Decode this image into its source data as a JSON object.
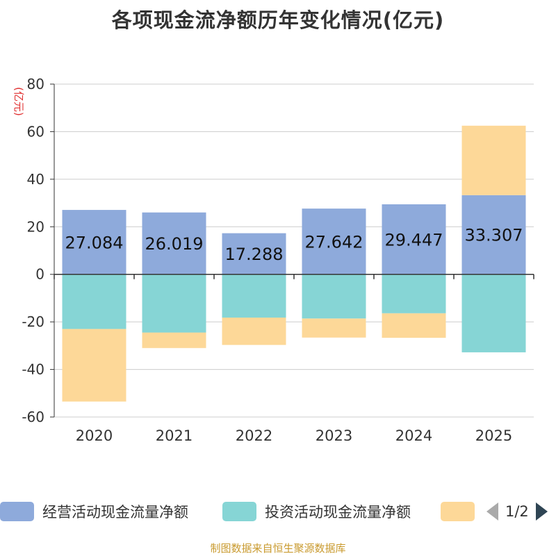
{
  "title": "各项现金流净额历年变化情况(亿元)",
  "source": "制图数据来自恒生聚源数据库",
  "pager": {
    "text": "1/2"
  },
  "colors": {
    "operating": "#8eaadb",
    "investing": "#86d5d5",
    "financing": "#fdd898",
    "y_unit": "#e03030",
    "grid": "#cccccc",
    "axis": "#333333"
  },
  "legend": [
    {
      "label": "经营活动现金流量净额",
      "color": "#8eaadb"
    },
    {
      "label": "投资活动现金流量净额",
      "color": "#86d5d5"
    },
    {
      "label": "",
      "color": "#fdd898"
    }
  ],
  "chart_data": {
    "type": "bar",
    "stacked": true,
    "title": "各项现金流净额历年变化情况(亿元)",
    "xlabel": "",
    "ylabel": "(亿元)",
    "ylim": [
      -60,
      80
    ],
    "yticks": [
      -60,
      -40,
      -20,
      0,
      20,
      40,
      60,
      80
    ],
    "grid": true,
    "legend_position": "bottom",
    "categories": [
      "2020",
      "2021",
      "2022",
      "2023",
      "2024",
      "2025"
    ],
    "series": [
      {
        "name": "经营活动现金流量净额",
        "values": [
          27.084,
          26.019,
          17.288,
          27.642,
          29.447,
          33.307
        ],
        "labels": [
          "27.084",
          "26.019",
          "17.288",
          "27.642",
          "29.447",
          "33.307"
        ]
      },
      {
        "name": "投资活动现金流量净额",
        "values": [
          -23.0,
          -24.5,
          -18.2,
          -18.6,
          -16.4,
          -32.8
        ]
      },
      {
        "name": "",
        "values": [
          -30.5,
          -6.5,
          -11.5,
          -8.0,
          -10.3,
          29.2
        ]
      }
    ]
  }
}
